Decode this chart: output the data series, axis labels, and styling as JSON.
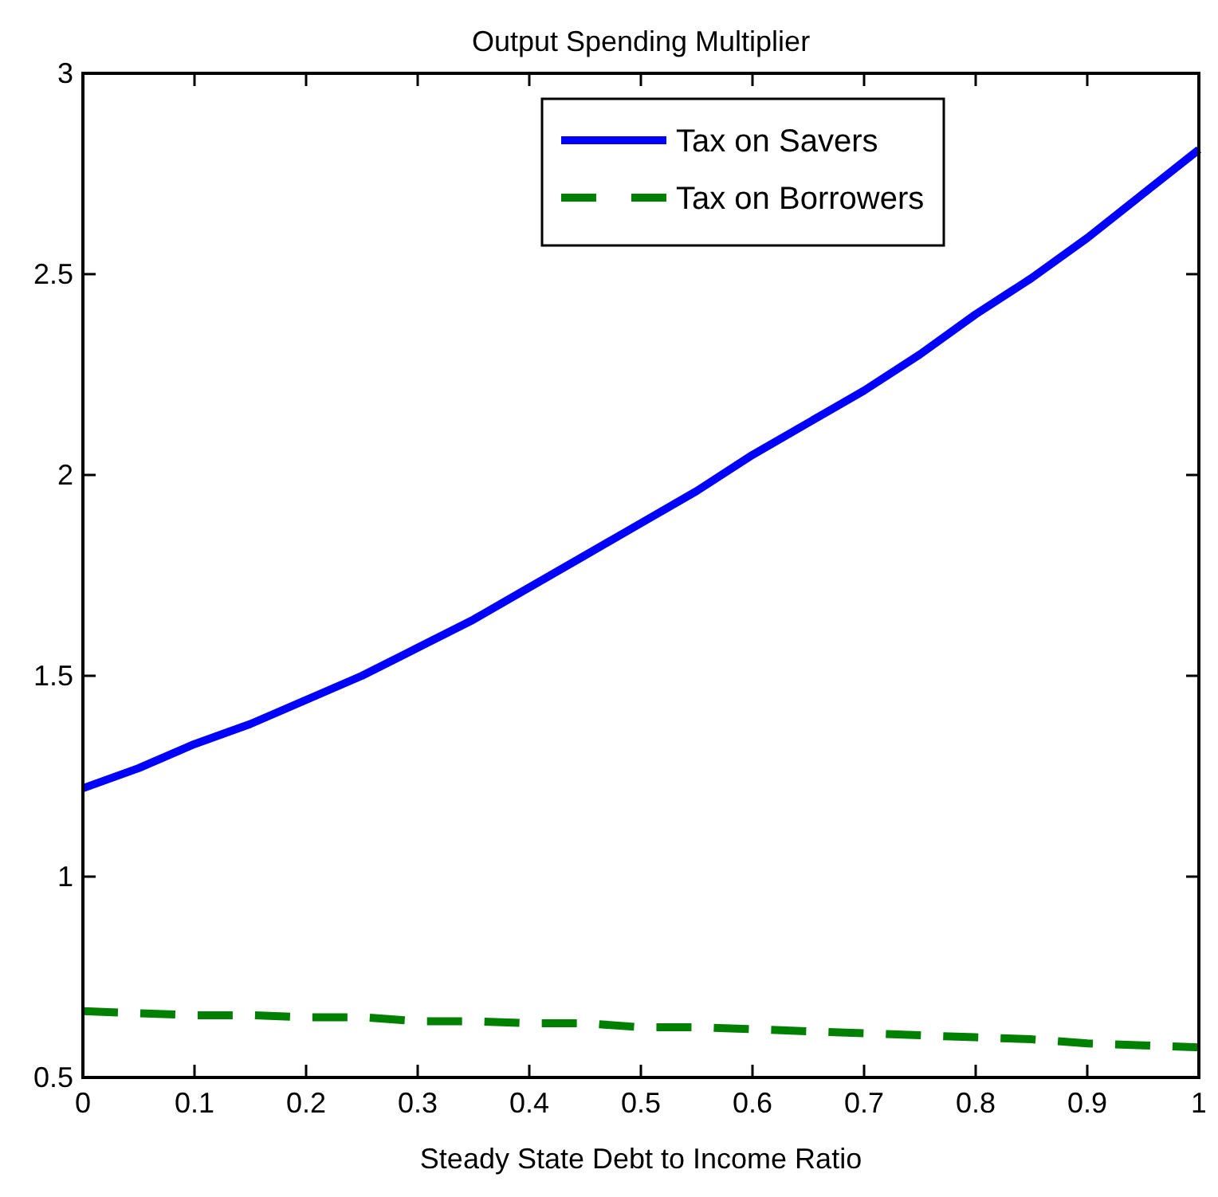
{
  "chart_data": {
    "type": "line",
    "title": "Output Spending Multiplier",
    "xlabel": "Steady State Debt to Income Ratio",
    "xlim": [
      0,
      1
    ],
    "xticks": [
      0,
      0.1,
      0.2,
      0.3,
      0.4,
      0.5,
      0.6,
      0.7,
      0.8,
      0.9,
      1
    ],
    "ylim": [
      0.5,
      3
    ],
    "yticks": [
      0.5,
      1,
      1.5,
      2,
      2.5,
      3
    ],
    "grid": false,
    "legend": "top right",
    "x": [
      0,
      0.05,
      0.1,
      0.15,
      0.2,
      0.25,
      0.3,
      0.35,
      0.4,
      0.45,
      0.5,
      0.55,
      0.6,
      0.65,
      0.7,
      0.75,
      0.8,
      0.85,
      0.9,
      0.95,
      1
    ],
    "series": [
      {
        "name": "Tax on Savers",
        "color": "#0000ff",
        "line_style": "solid",
        "values": [
          1.22,
          1.27,
          1.33,
          1.38,
          1.44,
          1.5,
          1.57,
          1.64,
          1.72,
          1.8,
          1.88,
          1.96,
          2.05,
          2.13,
          2.21,
          2.3,
          2.4,
          2.49,
          2.59,
          2.7,
          2.81
        ]
      },
      {
        "name": "Tax on Borrowers",
        "color": "#008000",
        "line_style": "dashed",
        "values": [
          0.665,
          0.66,
          0.655,
          0.655,
          0.65,
          0.65,
          0.64,
          0.64,
          0.635,
          0.635,
          0.625,
          0.625,
          0.62,
          0.615,
          0.61,
          0.605,
          0.6,
          0.595,
          0.585,
          0.58,
          0.575
        ]
      }
    ]
  }
}
